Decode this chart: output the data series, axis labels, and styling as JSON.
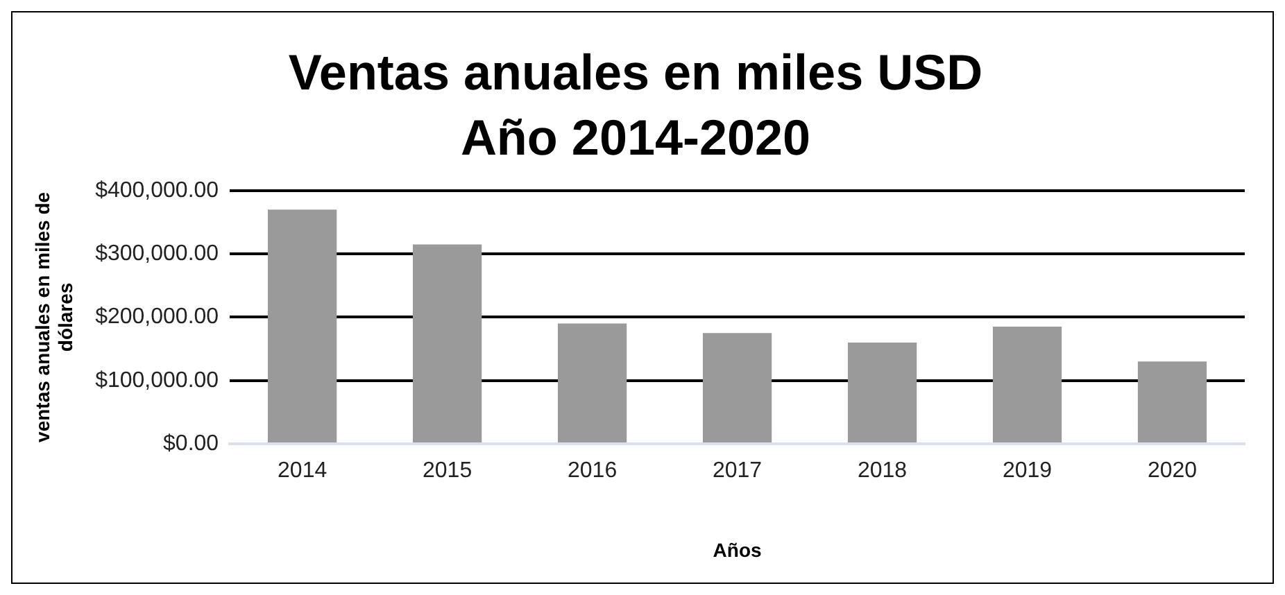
{
  "chart_data": {
    "type": "bar",
    "title": "Ventas anuales en miles USD",
    "subtitle": "Año 2014-2020",
    "xlabel": "Años",
    "ylabel": "ventas anuales en miles de dólares",
    "categories": [
      "2014",
      "2015",
      "2016",
      "2017",
      "2018",
      "2019",
      "2020"
    ],
    "values": [
      370000,
      315000,
      190000,
      175000,
      160000,
      185000,
      130000
    ],
    "color": "#9a9a9a",
    "ylim": [
      0,
      400000
    ],
    "yticks": [
      {
        "value": 0,
        "label": "$0.00"
      },
      {
        "value": 100000,
        "label": "$100,000.00"
      },
      {
        "value": 200000,
        "label": "$200,000.00"
      },
      {
        "value": 300000,
        "label": "$300,000.00"
      },
      {
        "value": 400000,
        "label": "$400,000.00"
      }
    ],
    "grid": "y",
    "legend": false
  }
}
